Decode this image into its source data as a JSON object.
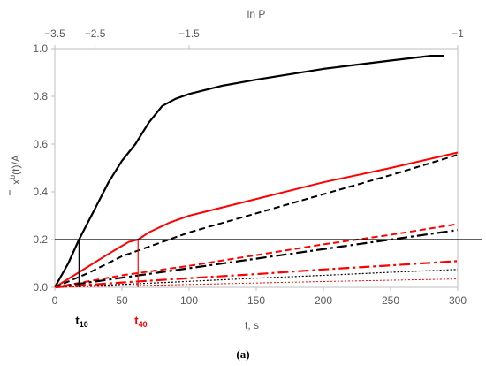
{
  "chart_data": {
    "type": "line",
    "xlabel": "t, s",
    "ylabel_main": "x",
    "ylabel_sup": "b",
    "ylabel_rest": "(t)/A",
    "top_axis_label": "ln P",
    "xlim": [
      0,
      300
    ],
    "ylim": [
      0,
      1.0
    ],
    "x_ticks": [
      "0",
      "50",
      "100",
      "150",
      "200",
      "250",
      "300"
    ],
    "y_ticks": [
      "0.0",
      "0.2",
      "0.4",
      "0.6",
      "0.8",
      "1.0"
    ],
    "top_ticks": [
      {
        "label": "−3.5",
        "x": 0
      },
      {
        "label": "−2.5",
        "x": 30
      },
      {
        "label": "−1.5",
        "x": 100
      },
      {
        "label": "−1",
        "x": 300
      }
    ],
    "threshold": {
      "y": 0.2
    },
    "markers": [
      {
        "main": "t",
        "sub": "10",
        "x": 18,
        "color": "#000000"
      },
      {
        "main": "t",
        "sub": "40",
        "x": 62,
        "color": "#ff0000"
      }
    ],
    "series": [
      {
        "color": "#000000",
        "dash": "solid",
        "width": 2.2,
        "points": [
          [
            0,
            0
          ],
          [
            10,
            0.1
          ],
          [
            18,
            0.2
          ],
          [
            30,
            0.33
          ],
          [
            40,
            0.44
          ],
          [
            50,
            0.53
          ],
          [
            60,
            0.6
          ],
          [
            70,
            0.69
          ],
          [
            80,
            0.76
          ],
          [
            90,
            0.79
          ],
          [
            100,
            0.81
          ],
          [
            125,
            0.845
          ],
          [
            150,
            0.87
          ],
          [
            200,
            0.915
          ],
          [
            250,
            0.95
          ],
          [
            280,
            0.97
          ],
          [
            290,
            0.97
          ]
        ]
      },
      {
        "color": "#ff0000",
        "dash": "solid",
        "width": 2.0,
        "points": [
          [
            0,
            0
          ],
          [
            20,
            0.07
          ],
          [
            40,
            0.14
          ],
          [
            55,
            0.19
          ],
          [
            62,
            0.2
          ],
          [
            70,
            0.23
          ],
          [
            85,
            0.27
          ],
          [
            100,
            0.3
          ],
          [
            150,
            0.37
          ],
          [
            200,
            0.44
          ],
          [
            250,
            0.5
          ],
          [
            300,
            0.565
          ]
        ]
      },
      {
        "color": "#000000",
        "dash": "7,4",
        "width": 2.0,
        "points": [
          [
            0,
            0
          ],
          [
            25,
            0.06
          ],
          [
            50,
            0.13
          ],
          [
            75,
            0.18
          ],
          [
            100,
            0.23
          ],
          [
            150,
            0.31
          ],
          [
            200,
            0.39
          ],
          [
            250,
            0.47
          ],
          [
            300,
            0.555
          ]
        ]
      },
      {
        "color": "#ff0000",
        "dash": "7,4",
        "width": 2.0,
        "points": [
          [
            0,
            0
          ],
          [
            50,
            0.05
          ],
          [
            100,
            0.09
          ],
          [
            150,
            0.135
          ],
          [
            200,
            0.18
          ],
          [
            250,
            0.22
          ],
          [
            300,
            0.265
          ]
        ]
      },
      {
        "color": "#000000",
        "dash": "12,4,3,4",
        "width": 2.2,
        "points": [
          [
            0,
            0
          ],
          [
            50,
            0.04
          ],
          [
            100,
            0.08
          ],
          [
            150,
            0.12
          ],
          [
            200,
            0.16
          ],
          [
            250,
            0.2
          ],
          [
            300,
            0.24
          ]
        ]
      },
      {
        "color": "#ff0000",
        "dash": "12,4,3,4",
        "width": 2.2,
        "points": [
          [
            0,
            0
          ],
          [
            50,
            0.02
          ],
          [
            100,
            0.038
          ],
          [
            150,
            0.055
          ],
          [
            200,
            0.075
          ],
          [
            250,
            0.092
          ],
          [
            300,
            0.11
          ]
        ]
      },
      {
        "color": "#000000",
        "dash": "2,2",
        "width": 1.2,
        "points": [
          [
            0,
            0
          ],
          [
            50,
            0.012
          ],
          [
            100,
            0.025
          ],
          [
            150,
            0.038
          ],
          [
            200,
            0.05
          ],
          [
            250,
            0.063
          ],
          [
            300,
            0.075
          ]
        ]
      },
      {
        "color": "#ff0000",
        "dash": "2,2",
        "width": 1.0,
        "points": [
          [
            0,
            0
          ],
          [
            100,
            0.012
          ],
          [
            200,
            0.024
          ],
          [
            300,
            0.035
          ]
        ]
      }
    ]
  },
  "caption": "(a)"
}
